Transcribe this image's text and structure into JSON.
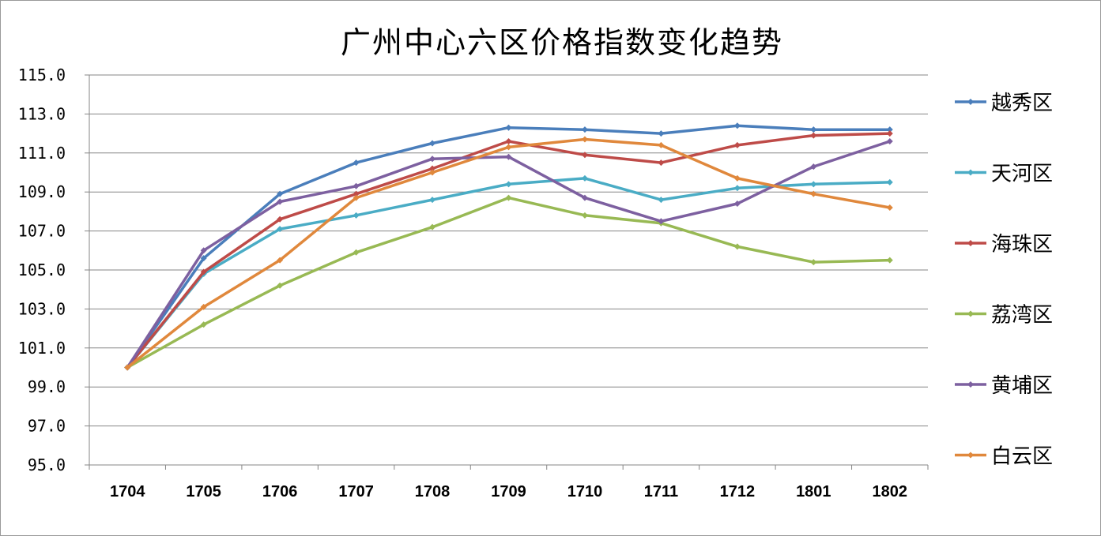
{
  "chart_data": {
    "type": "line",
    "title": "广州中心六区价格指数变化趋势",
    "xlabel": "",
    "ylabel": "",
    "categories": [
      "1704",
      "1705",
      "1706",
      "1707",
      "1708",
      "1709",
      "1710",
      "1711",
      "1712",
      "1801",
      "1802"
    ],
    "y_ticks": [
      "95.0",
      "97.0",
      "99.0",
      "101.0",
      "103.0",
      "105.0",
      "107.0",
      "109.0",
      "111.0",
      "113.0",
      "115.0"
    ],
    "ylim": [
      95,
      115
    ],
    "grid": "horizontal",
    "legend_position": "right",
    "series": [
      {
        "name": "越秀区",
        "color": "#4a7ebb",
        "values": [
          100.0,
          105.6,
          108.9,
          110.5,
          111.5,
          112.3,
          112.2,
          112.0,
          112.4,
          112.2,
          112.2
        ]
      },
      {
        "name": "天河区",
        "color": "#4aacc5",
        "values": [
          100.0,
          104.8,
          107.1,
          107.8,
          108.6,
          109.4,
          109.7,
          108.6,
          109.2,
          109.4,
          109.5
        ]
      },
      {
        "name": "海珠区",
        "color": "#be4b48",
        "values": [
          100.0,
          104.9,
          107.6,
          108.9,
          110.2,
          111.6,
          110.9,
          110.5,
          111.4,
          111.9,
          112.0
        ]
      },
      {
        "name": "荔湾区",
        "color": "#98b954",
        "values": [
          100.0,
          102.2,
          104.2,
          105.9,
          107.2,
          108.7,
          107.8,
          107.4,
          106.2,
          105.4,
          105.5
        ]
      },
      {
        "name": "黄埔区",
        "color": "#7d60a0",
        "values": [
          100.0,
          106.0,
          108.5,
          109.3,
          110.7,
          110.8,
          108.7,
          107.5,
          108.4,
          110.3,
          111.6
        ]
      },
      {
        "name": "白云区",
        "color": "#e0883c",
        "values": [
          100.0,
          103.1,
          105.5,
          108.7,
          110.0,
          111.3,
          111.7,
          111.4,
          109.7,
          108.9,
          108.2
        ]
      }
    ]
  }
}
